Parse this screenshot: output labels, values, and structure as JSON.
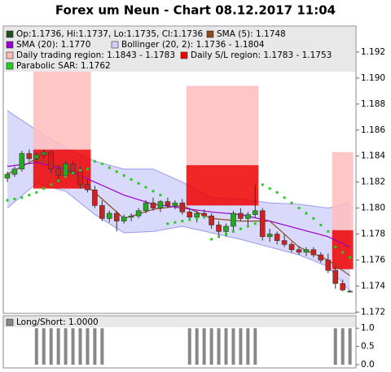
{
  "chart_data": {
    "type": "candlestick",
    "title": "Forex um Neun - Chart 08.12.2017 11:04",
    "candle_label": "Op:1.1736, Hi:1.1737, Lo:1.1735, Cl:1.1736",
    "up_color": "#22aa22",
    "down_color": "#cc2222",
    "candle_legend_color": "#205020",
    "ylim": [
      1.1719,
      1.194
    ],
    "yticks": [
      1.172,
      1.174,
      1.176,
      1.178,
      {
        "value": 1.18,
        "label": "1.180"
      },
      1.182,
      1.184,
      1.186,
      1.188,
      {
        "value": 1.19,
        "label": "1.190"
      },
      1.192
    ],
    "open": [
      1.1823,
      1.1826,
      1.183,
      1.1842,
      1.1838,
      1.1841,
      1.1843,
      1.183,
      1.1825,
      1.1834,
      1.1828,
      1.1818,
      1.1814,
      1.1802,
      1.1792,
      1.1796,
      1.179,
      1.1793,
      1.1794,
      1.1798,
      1.1804,
      1.18,
      1.1805,
      1.1802,
      1.1804,
      1.1797,
      1.1793,
      1.1796,
      1.1794,
      1.1787,
      1.1782,
      1.1786,
      1.1796,
      1.1792,
      1.1795,
      1.1798,
      1.1778,
      1.178,
      1.1775,
      1.1772,
      1.1768,
      1.1766,
      1.1768,
      1.1764,
      1.176,
      1.1752,
      1.1742,
      1.1736
    ],
    "high": [
      1.1828,
      1.1832,
      1.1844,
      1.1845,
      1.1843,
      1.1845,
      1.1844,
      1.1833,
      1.1836,
      1.1836,
      1.1832,
      1.1822,
      1.1817,
      1.1806,
      1.1798,
      1.1798,
      1.1795,
      1.1796,
      1.18,
      1.1806,
      1.1808,
      1.1806,
      1.1808,
      1.1806,
      1.1807,
      1.18,
      1.1798,
      1.1799,
      1.1796,
      1.179,
      1.1788,
      1.1798,
      1.18,
      1.1797,
      1.1818,
      1.18,
      1.1784,
      1.1782,
      1.178,
      1.1774,
      1.1771,
      1.177,
      1.177,
      1.1766,
      1.1765,
      1.1755,
      1.1745,
      1.1737
    ],
    "low": [
      1.182,
      1.1824,
      1.1828,
      1.1836,
      1.1835,
      1.1838,
      1.1827,
      1.1822,
      1.1823,
      1.1826,
      1.1815,
      1.1812,
      1.18,
      1.179,
      1.1789,
      1.1782,
      1.1788,
      1.179,
      1.1792,
      1.1796,
      1.1798,
      1.1797,
      1.18,
      1.1799,
      1.1795,
      1.1791,
      1.1789,
      1.1792,
      1.1784,
      1.1779,
      1.1778,
      1.1782,
      1.179,
      1.1787,
      1.1793,
      1.1775,
      1.1774,
      1.1772,
      1.177,
      1.1766,
      1.1764,
      1.1763,
      1.1762,
      1.1758,
      1.175,
      1.1738,
      1.1736,
      1.1735
    ],
    "close": [
      1.1826,
      1.183,
      1.1842,
      1.1838,
      1.1841,
      1.1843,
      1.183,
      1.1825,
      1.1834,
      1.1828,
      1.1818,
      1.1814,
      1.1802,
      1.1792,
      1.1796,
      1.179,
      1.1793,
      1.1794,
      1.1798,
      1.1804,
      1.18,
      1.1805,
      1.1802,
      1.1804,
      1.1797,
      1.1793,
      1.1796,
      1.1794,
      1.1787,
      1.1782,
      1.1786,
      1.1796,
      1.1792,
      1.1795,
      1.1798,
      1.1778,
      1.178,
      1.1775,
      1.1772,
      1.1768,
      1.1766,
      1.1768,
      1.1764,
      1.176,
      1.1752,
      1.1742,
      1.1737,
      1.1736
    ],
    "series": [
      {
        "name": "SMA (5): 1.1748",
        "kind": "line",
        "color": "#8b4a1a",
        "x": [
          0,
          4,
          8,
          12,
          16,
          20,
          24,
          28,
          32,
          36,
          40,
          44,
          47
        ],
        "values": [
          1.1826,
          1.1838,
          1.183,
          1.1812,
          1.1792,
          1.1799,
          1.1802,
          1.1792,
          1.179,
          1.179,
          1.177,
          1.176,
          1.1748
        ]
      },
      {
        "name": "SMA (20): 1.1770",
        "kind": "line",
        "color": "#9900cc",
        "x": [
          0,
          4,
          8,
          12,
          16,
          20,
          24,
          28,
          32,
          36,
          40,
          44,
          47
        ],
        "values": [
          1.1832,
          1.1835,
          1.183,
          1.182,
          1.181,
          1.1803,
          1.18,
          1.1797,
          1.1795,
          1.179,
          1.1784,
          1.1778,
          1.177
        ]
      },
      {
        "name": "Bollinger (20, 2): 1.1736 - 1.1804",
        "kind": "band",
        "color": "#9a9af0",
        "fill": "#d0d0fa",
        "x": [
          0,
          4,
          8,
          12,
          16,
          20,
          24,
          28,
          32,
          36,
          40,
          44,
          47
        ],
        "upper": [
          1.1875,
          1.186,
          1.1846,
          1.1836,
          1.183,
          1.183,
          1.182,
          1.1808,
          1.1807,
          1.1804,
          1.1803,
          1.18,
          1.1804
        ],
        "lower": [
          1.18,
          1.1819,
          1.1813,
          1.1795,
          1.1781,
          1.1782,
          1.1786,
          1.1781,
          1.1776,
          1.177,
          1.1764,
          1.1755,
          1.1736
        ]
      },
      {
        "name": "Daily trading region: 1.1843 - 1.1783",
        "kind": "region",
        "color": "#ffbcbc",
        "start": [
          4,
          25,
          45
        ],
        "end": [
          11,
          34,
          47
        ],
        "high": [
          1.1905,
          1.1894,
          1.1843
        ],
        "low": [
          1.1845,
          1.1833,
          1.1783
        ]
      },
      {
        "name": "Daily S/L region: 1.1783 - 1.1753",
        "kind": "region",
        "color": "#ee0000",
        "start": [
          4,
          25,
          45
        ],
        "end": [
          11,
          34,
          47
        ],
        "high": [
          1.1845,
          1.1833,
          1.1783
        ],
        "low": [
          1.1815,
          1.1802,
          1.1753
        ]
      },
      {
        "name": "Parabolic SAR: 1.1762",
        "kind": "dots",
        "color": "#22cc22",
        "values": [
          1.1806,
          1.1807,
          1.1808,
          1.181,
          1.1812,
          1.1815,
          1.1818,
          1.1821,
          1.1824,
          1.1827,
          1.1829,
          1.183,
          1.1836,
          1.1834,
          1.1831,
          1.1828,
          1.1825,
          1.1822,
          1.1819,
          1.1816,
          1.1813,
          1.181,
          1.1788,
          1.1789,
          1.179,
          1.1791,
          1.1792,
          1.1793,
          1.1776,
          1.1778,
          1.178,
          1.1782,
          1.1784,
          1.1786,
          1.1788,
          1.1818,
          1.1815,
          1.1812,
          1.1808,
          1.1804,
          1.18,
          1.1796,
          1.1792,
          1.1787,
          1.1782,
          1.177,
          1.1766,
          1.1762
        ]
      }
    ],
    "sub": {
      "name": "Long/Short: 1.0000",
      "color": "#888888",
      "ylim": [
        -0.09,
        1.34
      ],
      "yticks": [
        {
          "value": 0,
          "label": "0.0"
        },
        0.5,
        {
          "value": 1,
          "label": "1.0"
        }
      ],
      "values": [
        0,
        0,
        0,
        0,
        1,
        1,
        1,
        1,
        1,
        1,
        1,
        1,
        1,
        1,
        0,
        0,
        0,
        0,
        0,
        0,
        0,
        0,
        0,
        0,
        0,
        1,
        1,
        1,
        1,
        1,
        1,
        1,
        1,
        1,
        1,
        0,
        0,
        0,
        0,
        0,
        0,
        0,
        0,
        0,
        0,
        1,
        1,
        1
      ]
    }
  }
}
